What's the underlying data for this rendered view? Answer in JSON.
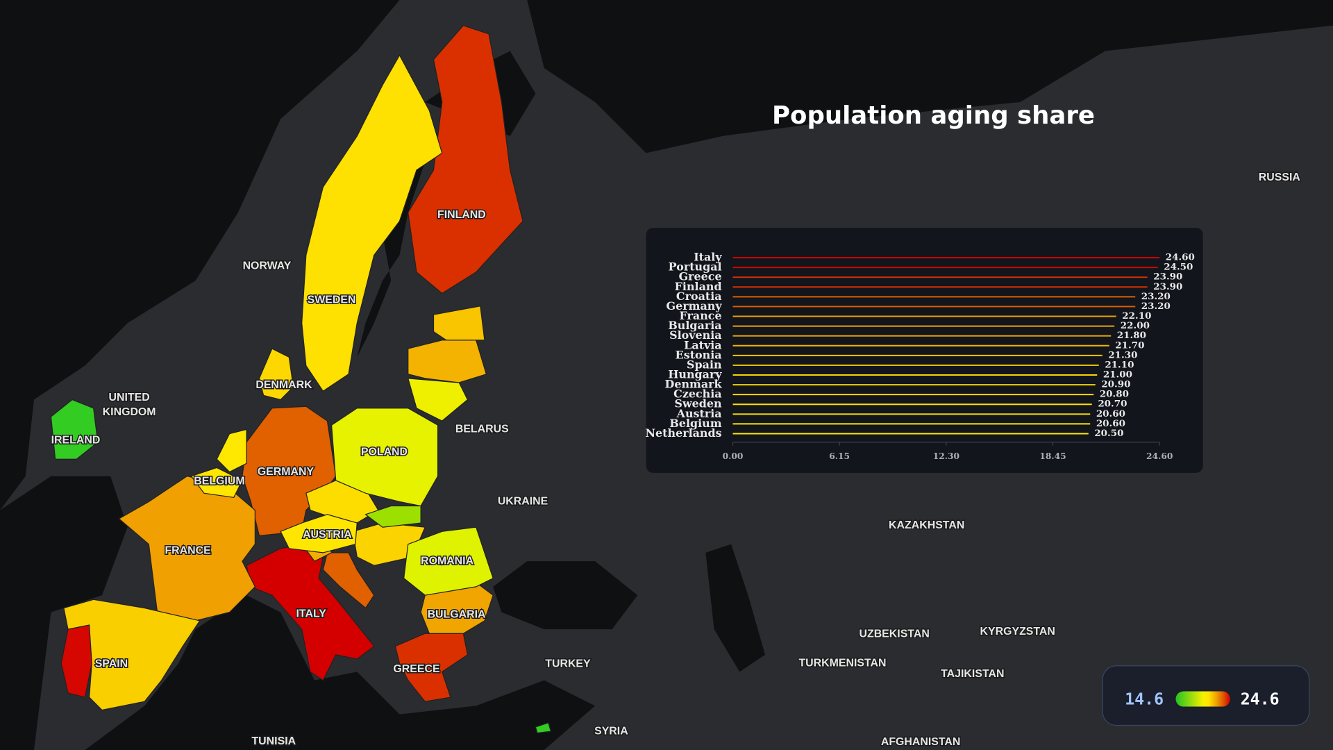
{
  "title": "Population aging share",
  "map": {
    "labels": [
      "NORWAY",
      "SWEDEN",
      "FINLAND",
      "DENMARK",
      "UNITED KINGDOM",
      "IRELAND",
      "GERMANY",
      "POLAND",
      "BELARUS",
      "BELGIUM",
      "UKRAINE",
      "FRANCE",
      "AUSTRIA",
      "ROMANIA",
      "ITALY",
      "BULGARIA",
      "SPAIN",
      "GREECE",
      "TURKEY",
      "TUNISIA",
      "SYRIA",
      "RUSSIA",
      "KAZAKHSTAN",
      "UZBEKISTAN",
      "KYRGYZSTAN",
      "TURKMENISTAN",
      "TAJIKISTAN",
      "AFGHANISTAN"
    ]
  },
  "legend": {
    "min": 14.6,
    "max": 24.6
  },
  "chart_data": {
    "type": "bar",
    "categories": [
      "Italy",
      "Portugal",
      "Greece",
      "Finland",
      "Croatia",
      "Germany",
      "France",
      "Bulgaria",
      "Slovenia",
      "Latvia",
      "Estonia",
      "Spain",
      "Hungary",
      "Denmark",
      "Czechia",
      "Sweden",
      "Austria",
      "Belgium",
      "Netherlands"
    ],
    "values": [
      24.6,
      24.5,
      23.9,
      23.9,
      23.2,
      23.2,
      22.1,
      22.0,
      21.8,
      21.7,
      21.3,
      21.1,
      21.0,
      20.9,
      20.8,
      20.7,
      20.6,
      20.6,
      20.5
    ],
    "value_labels": [
      "24.60",
      "24.50",
      "23.90",
      "23.90",
      "23.20",
      "23.20",
      "22.10",
      "22.00",
      "21.80",
      "21.70",
      "21.30",
      "21.10",
      "21.00",
      "20.90",
      "20.80",
      "20.70",
      "20.60",
      "20.60",
      "20.50"
    ],
    "xlim": [
      0,
      24.6
    ],
    "xticks": [
      {
        "value": 0,
        "label": "0.00"
      },
      {
        "value": 6.15,
        "label": "6.15"
      },
      {
        "value": 12.3,
        "label": "12.30"
      },
      {
        "value": 18.45,
        "label": "18.45"
      },
      {
        "value": 24.6,
        "label": "24.60"
      }
    ]
  }
}
